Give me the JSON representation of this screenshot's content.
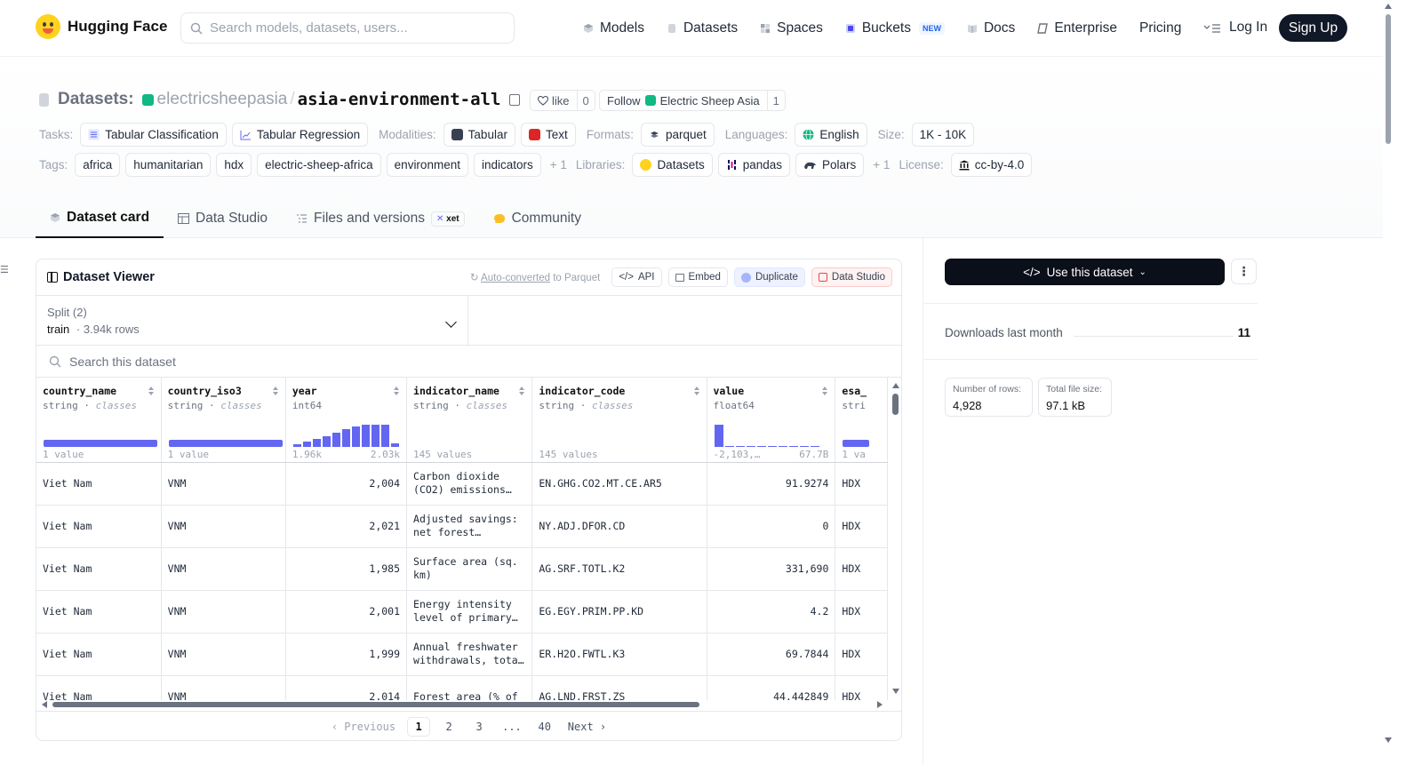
{
  "nav": {
    "brand": "Hugging Face",
    "search_placeholder": "Search models, datasets, users...",
    "items": [
      {
        "label": "Models",
        "color": "#9ca3af"
      },
      {
        "label": "Datasets",
        "color": "#d1d5db"
      },
      {
        "label": "Spaces",
        "color": "#9ca3af"
      },
      {
        "label": "Buckets",
        "color": "#4f46e5",
        "badge": "NEW"
      },
      {
        "label": "Docs",
        "color": "#9ca3af"
      },
      {
        "label": "Enterprise",
        "color": "#6b7280"
      },
      {
        "label": "Pricing"
      }
    ],
    "login": "Log In",
    "signup": "Sign Up"
  },
  "repo": {
    "type_label": "Datasets:",
    "org": "electricsheepasia",
    "name": "asia-environment-all",
    "like_label": "like",
    "like_count": "0",
    "follow_label": "Follow",
    "follow_org": "Electric Sheep Asia",
    "follow_count": "1"
  },
  "meta": {
    "tasks_label": "Tasks:",
    "tasks": [
      "Tabular Classification",
      "Tabular Regression"
    ],
    "modalities_label": "Modalities:",
    "modalities": [
      "Tabular",
      "Text"
    ],
    "formats_label": "Formats:",
    "formats": [
      "parquet"
    ],
    "languages_label": "Languages:",
    "languages": [
      "English"
    ],
    "size_label": "Size:",
    "size": "1K - 10K",
    "tags_label": "Tags:",
    "tags": [
      "africa",
      "humanitarian",
      "hdx",
      "electric-sheep-africa",
      "environment",
      "indicators"
    ],
    "tags_more": "+ 1",
    "libraries_label": "Libraries:",
    "libraries": [
      "Datasets",
      "pandas",
      "Polars"
    ],
    "libraries_more": "+ 1",
    "license_label": "License:",
    "license": "cc-by-4.0"
  },
  "tabs": [
    {
      "label": "Dataset card",
      "active": true
    },
    {
      "label": "Data Studio"
    },
    {
      "label": "Files and versions",
      "badge": "xet"
    },
    {
      "label": "Community"
    }
  ],
  "viewer": {
    "title": "Dataset Viewer",
    "autoconv_link": "Auto-converted",
    "autoconv_rest": "to Parquet",
    "actions": [
      "API",
      "Embed",
      "Duplicate",
      "Data Studio"
    ],
    "split_label": "Split (2)",
    "split_name": "train",
    "split_rows": "3.94k rows",
    "search_placeholder": "Search this dataset",
    "columns": [
      {
        "name": "country_name",
        "type": "string",
        "kind": "classes",
        "foot_left": "1 value",
        "foot_right": ""
      },
      {
        "name": "country_iso3",
        "type": "string",
        "kind": "classes",
        "foot_left": "1 value",
        "foot_right": ""
      },
      {
        "name": "year",
        "type": "int64",
        "kind": "",
        "foot_left": "1.96k",
        "foot_right": "2.03k",
        "hist": [
          3,
          6,
          9,
          12,
          16,
          20,
          23,
          25,
          25,
          25,
          4
        ]
      },
      {
        "name": "indicator_name",
        "type": "string",
        "kind": "classes",
        "foot_left": "145 values",
        "foot_right": ""
      },
      {
        "name": "indicator_code",
        "type": "string",
        "kind": "classes",
        "foot_left": "145 values",
        "foot_right": ""
      },
      {
        "name": "value",
        "type": "float64",
        "kind": "",
        "foot_left": "-2,103,…",
        "foot_right": "67.7B",
        "hist": [
          24,
          1,
          1,
          1,
          1,
          1,
          1,
          1,
          1,
          1
        ]
      },
      {
        "name": "esa_",
        "type": "stri",
        "kind": "",
        "foot_left": "1 va",
        "foot_right": ""
      }
    ],
    "rows": [
      [
        "Viet Nam",
        "VNM",
        "2,004",
        "Carbon dioxide (CO2) emissions…",
        "EN.GHG.CO2.MT.CE.AR5",
        "91.9274",
        "HDX"
      ],
      [
        "Viet Nam",
        "VNM",
        "2,021",
        "Adjusted savings: net forest…",
        "NY.ADJ.DFOR.CD",
        "0",
        "HDX"
      ],
      [
        "Viet Nam",
        "VNM",
        "1,985",
        "Surface area (sq. km)",
        "AG.SRF.TOTL.K2",
        "331,690",
        "HDX"
      ],
      [
        "Viet Nam",
        "VNM",
        "2,001",
        "Energy intensity level of primary…",
        "EG.EGY.PRIM.PP.KD",
        "4.2",
        "HDX"
      ],
      [
        "Viet Nam",
        "VNM",
        "1,999",
        "Annual freshwater withdrawals, tota…",
        "ER.H2O.FWTL.K3",
        "69.7844",
        "HDX"
      ],
      [
        "Viet Nam",
        "VNM",
        "2,014",
        "Forest area (% of",
        "AG.LND.FRST.ZS",
        "44.442849",
        "HDX"
      ]
    ],
    "pager": {
      "prev": "Previous",
      "pages": [
        "1",
        "2",
        "3",
        "...",
        "40"
      ],
      "current": "1",
      "next": "Next"
    }
  },
  "sidebar": {
    "use_button": "Use this dataset",
    "downloads_label": "Downloads last month",
    "downloads_value": "11",
    "rows_label": "Number of rows:",
    "rows_value": "4,928",
    "size_label": "Total file size:",
    "size_value": "97.1 kB"
  }
}
